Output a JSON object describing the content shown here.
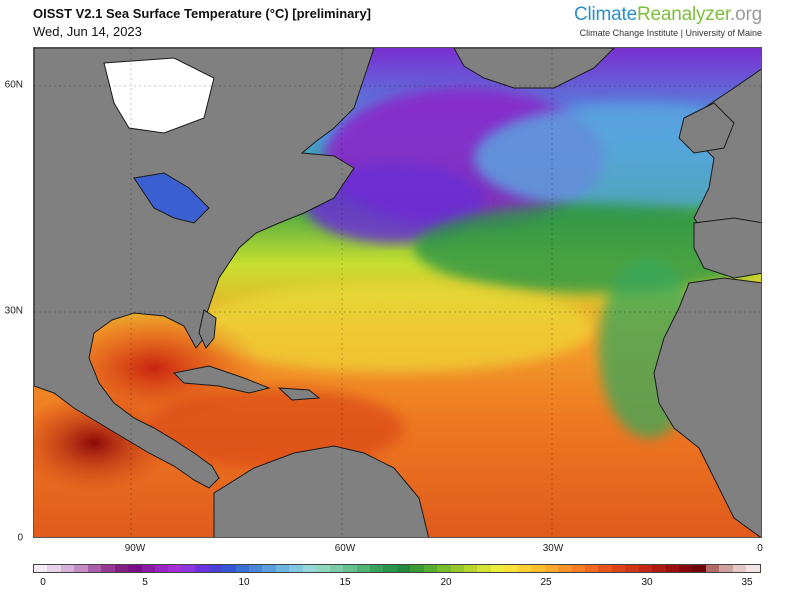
{
  "header": {
    "title": "OISST V2.1 Sea Surface Temperature (°C) [preliminary]",
    "date": "Wed, Jun 14, 2023",
    "brand_part1": "Climate",
    "brand_part2": "Reanalyzer",
    "brand_part3": ".org",
    "tagline": "Climate Change Institute | University of Maine"
  },
  "map": {
    "lat_labels": [
      "60N",
      "30N",
      "0"
    ],
    "lon_labels": [
      "90W",
      "60W",
      "30W",
      "0"
    ],
    "colors": {
      "land": "#808080",
      "coast": "#1a1a1a"
    }
  },
  "colorbar": {
    "tick_labels": [
      "0",
      "5",
      "10",
      "15",
      "20",
      "25",
      "30",
      "35"
    ],
    "colors": [
      "#f4eaf4",
      "#e8d2e8",
      "#d6b0d6",
      "#c48cc4",
      "#ab5fab",
      "#963a96",
      "#7f1f7f",
      "#7a0f86",
      "#8a1aa6",
      "#9b25c2",
      "#a52fd8",
      "#8f35e0",
      "#6a35e0",
      "#4a3ed8",
      "#3556d4",
      "#3a6fd6",
      "#4a86da",
      "#5a9ede",
      "#6cb3e0",
      "#82c6e0",
      "#96d6d8",
      "#8fd6c0",
      "#7ccca6",
      "#66c08e",
      "#4fb274",
      "#38a25c",
      "#2a944a",
      "#23893d",
      "#3a9a36",
      "#58ac30",
      "#78bc2c",
      "#98c92c",
      "#b6d62e",
      "#d3e233",
      "#ecec3a",
      "#f8e23a",
      "#fcd034",
      "#fdbe2c",
      "#fda82a",
      "#fb9226",
      "#f77c24",
      "#f06820",
      "#e6561c",
      "#dc4418",
      "#d03414",
      "#c22612",
      "#b0190e",
      "#9a0f0c",
      "#84080a",
      "#6e0508",
      "#b06a6a",
      "#cfa0a0",
      "#e4c8c8",
      "#f2e4e4"
    ]
  }
}
